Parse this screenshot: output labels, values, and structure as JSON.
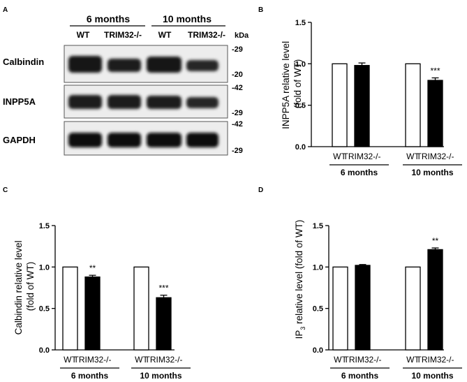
{
  "panel_letters": [
    "A",
    "B",
    "C",
    "D"
  ],
  "western_blot": {
    "groups": [
      "6 months",
      "10 months"
    ],
    "lanes": [
      "WT",
      "TRIM32-/-",
      "WT",
      "TRIM32-/-"
    ],
    "unit_label": "kDa",
    "proteins": [
      {
        "name": "Calbindin",
        "markers": [
          "-29",
          "-20"
        ]
      },
      {
        "name": "INPP5A",
        "markers": [
          "-42",
          "-29"
        ]
      },
      {
        "name": "GAPDH",
        "markers": [
          "-42",
          "-29"
        ]
      }
    ]
  },
  "chart_data": [
    {
      "panel": "B",
      "type": "bar",
      "ylabel_lines": [
        "INPP5A relative level",
        "(fold of WT)"
      ],
      "ylim": [
        0,
        1.5
      ],
      "yticks": [
        "0.0",
        "0.5",
        "1.0",
        "1.5"
      ],
      "groups": [
        "6 months",
        "10 months"
      ],
      "categories": [
        "WT",
        "TRIM32-/-"
      ],
      "series": [
        {
          "name": "WT",
          "values": [
            1.0,
            1.0
          ],
          "errors": [
            0,
            0
          ],
          "fill": "#ffffff"
        },
        {
          "name": "TRIM32-/-",
          "values": [
            0.98,
            0.8
          ],
          "errors": [
            0.03,
            0.03
          ],
          "fill": "#000000"
        }
      ],
      "significance": [
        "",
        "***"
      ]
    },
    {
      "panel": "C",
      "type": "bar",
      "ylabel_lines": [
        "Calbindin relative level",
        "(fold of WT)"
      ],
      "ylim": [
        0,
        1.5
      ],
      "yticks": [
        "0.0",
        "0.5",
        "1.0",
        "1.5"
      ],
      "groups": [
        "6 months",
        "10 months"
      ],
      "categories": [
        "WT",
        "TRIM32-/-"
      ],
      "series": [
        {
          "name": "WT",
          "values": [
            1.0,
            1.0
          ],
          "errors": [
            0,
            0
          ],
          "fill": "#ffffff"
        },
        {
          "name": "TRIM32-/-",
          "values": [
            0.88,
            0.63
          ],
          "errors": [
            0.02,
            0.03
          ],
          "fill": "#000000"
        }
      ],
      "significance": [
        "**",
        "***"
      ]
    },
    {
      "panel": "D",
      "type": "bar",
      "ylabel_main": "IP",
      "ylabel_sub": "3",
      "ylabel_rest": " relative level (fold of WT)",
      "ylim": [
        0,
        1.5
      ],
      "yticks": [
        "0.0",
        "0.5",
        "1.0",
        "1.5"
      ],
      "groups": [
        "6 months",
        "10 months"
      ],
      "categories": [
        "WT",
        "TRIM32-/-"
      ],
      "series": [
        {
          "name": "WT",
          "values": [
            1.0,
            1.0
          ],
          "errors": [
            0,
            0
          ],
          "fill": "#ffffff"
        },
        {
          "name": "TRIM32-/-",
          "values": [
            1.02,
            1.21
          ],
          "errors": [
            0.01,
            0.02
          ],
          "fill": "#000000"
        }
      ],
      "significance": [
        "",
        "**"
      ]
    }
  ]
}
